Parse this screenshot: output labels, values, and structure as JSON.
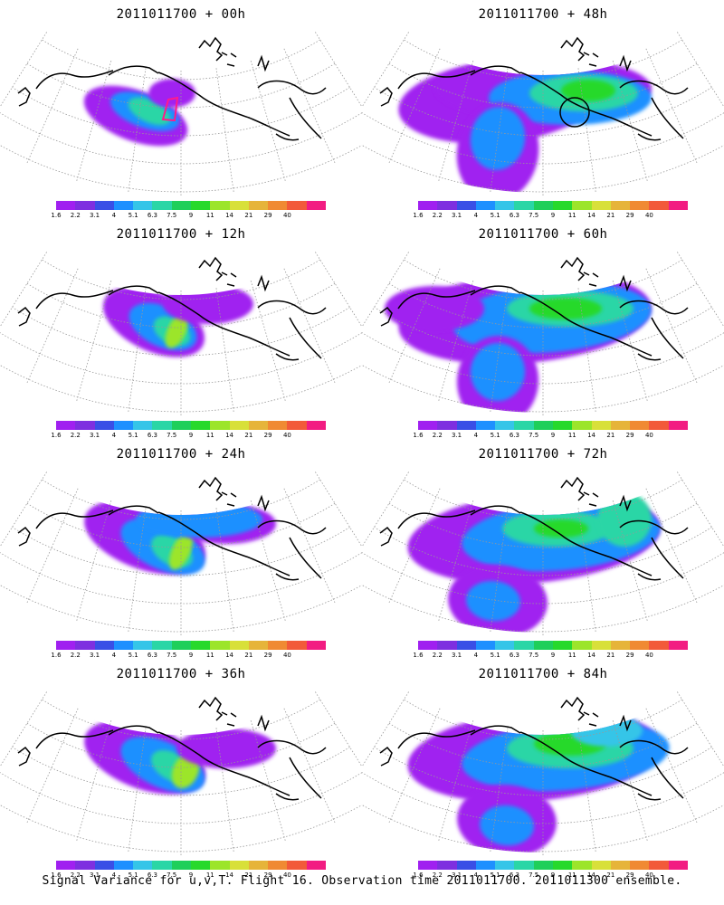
{
  "panels": [
    {
      "title": "2011011700 + 00h",
      "lead": "00h",
      "marker": "magenta-outline"
    },
    {
      "title": "2011011700 + 48h",
      "lead": "48h",
      "marker": "black-circle"
    },
    {
      "title": "2011011700 + 12h",
      "lead": "12h",
      "marker": "none"
    },
    {
      "title": "2011011700 + 60h",
      "lead": "60h",
      "marker": "none"
    },
    {
      "title": "2011011700 + 24h",
      "lead": "24h",
      "marker": "none"
    },
    {
      "title": "2011011700 + 72h",
      "lead": "72h",
      "marker": "none"
    },
    {
      "title": "2011011700 + 36h",
      "lead": "36h",
      "marker": "none"
    },
    {
      "title": "2011011700 + 84h",
      "lead": "84h",
      "marker": "none"
    }
  ],
  "colorbar": {
    "labels": [
      "1.6",
      "2.2",
      "3.1",
      "4",
      "5.1",
      "6.3",
      "7.5",
      "9",
      "11",
      "14",
      "21",
      "29",
      "40"
    ],
    "colors": [
      "#a020f0",
      "#7e2fe0",
      "#3a4fe6",
      "#1e90ff",
      "#35c5e8",
      "#2ad6a6",
      "#1fcf5a",
      "#27d92b",
      "#9ce52a",
      "#d8e03a",
      "#e6b43a",
      "#f08a33",
      "#f25a3a",
      "#f21c82"
    ]
  },
  "caption": "Signal Variance for u,v,T. Flight 16. Observation time 2011011700. 2011011300 ensemble."
}
